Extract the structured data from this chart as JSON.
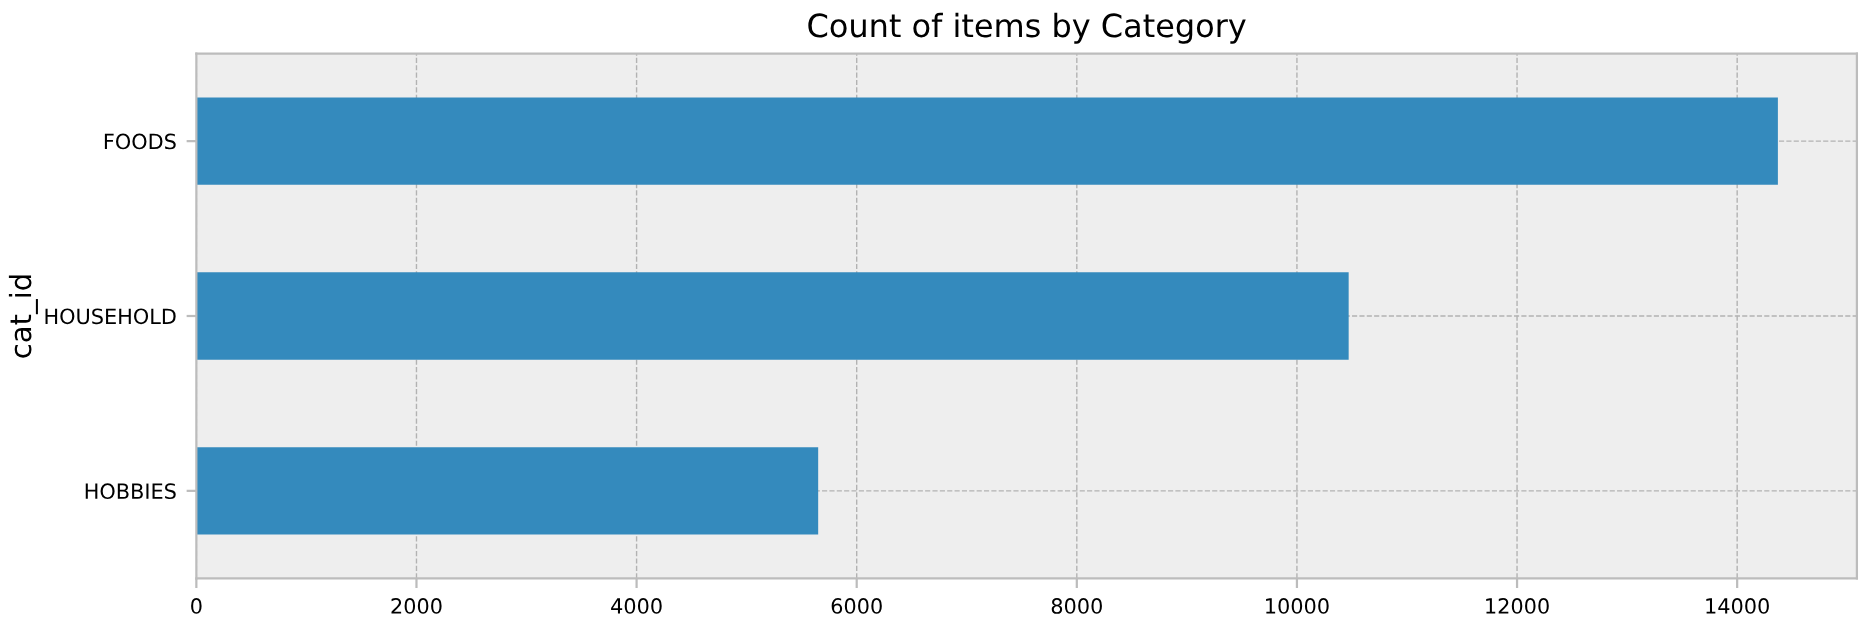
{
  "chart_data": {
    "type": "bar",
    "orientation": "horizontal",
    "title": "Count of items by Category",
    "ylabel": "cat_id",
    "categories": [
      "FOODS",
      "HOUSEHOLD",
      "HOBBIES"
    ],
    "values": [
      14370,
      10470,
      5650
    ],
    "color": "#348abd",
    "xlim": [
      0,
      15088
    ],
    "xticks": [
      0,
      2000,
      4000,
      6000,
      8000,
      10000,
      12000,
      14000
    ],
    "grid": true
  }
}
